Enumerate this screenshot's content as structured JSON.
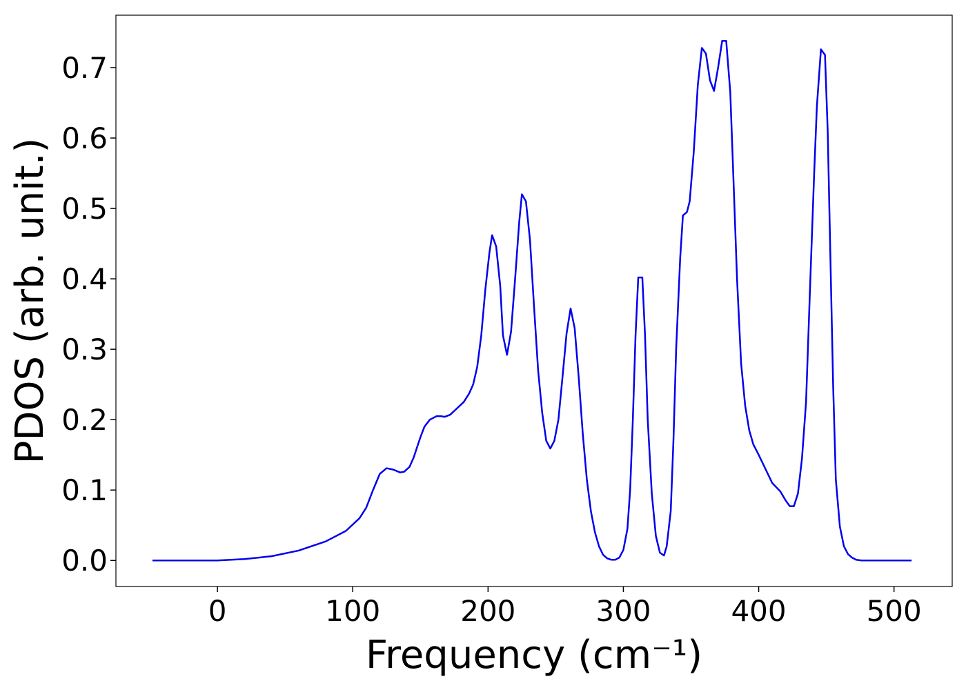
{
  "chart_data": {
    "type": "line",
    "xlabel": "Frequency (cm⁻¹)",
    "ylabel": "PDOS (arb. unit.)",
    "xlim": [
      -75,
      543
    ],
    "ylim": [
      -0.037,
      0.7745
    ],
    "xticks": [
      0,
      100,
      200,
      300,
      400,
      500
    ],
    "yticks": [
      {
        "value": 0,
        "label": "0.0"
      },
      0.1,
      0.2,
      0.3,
      0.4,
      0.5,
      0.6,
      0.7
    ],
    "series": [
      {
        "color": "#0000ee",
        "x": [
          -48,
          0,
          20,
          40,
          60,
          80,
          95,
          105,
          110,
          115,
          120,
          125,
          130,
          135,
          138,
          142,
          145,
          150,
          153,
          157,
          162,
          165,
          168,
          172,
          177,
          182,
          186,
          189,
          192,
          195,
          198,
          201,
          203,
          206,
          209,
          211,
          214,
          217,
          220,
          223,
          225,
          228,
          231,
          234,
          237,
          240,
          243,
          246,
          249,
          252,
          255,
          258,
          261,
          264,
          267,
          270,
          273,
          276,
          279,
          282,
          285,
          288,
          291,
          294,
          297,
          300,
          303,
          305,
          307,
          309,
          311,
          314,
          316,
          318,
          321,
          324,
          327,
          330,
          332,
          335,
          337,
          339,
          342,
          344,
          347,
          349,
          352,
          355,
          358,
          361,
          364,
          367,
          370,
          373,
          376,
          379,
          381,
          384,
          387,
          390,
          393,
          396,
          400,
          405,
          410,
          416,
          420,
          423,
          426,
          429,
          432,
          435,
          438,
          441,
          443,
          446,
          449,
          451,
          453,
          455,
          457,
          460,
          463,
          466,
          469,
          472,
          476,
          513
        ],
        "values": [
          0,
          0,
          0.002,
          0.006,
          0.014,
          0.027,
          0.042,
          0.06,
          0.075,
          0.1,
          0.123,
          0.131,
          0.129,
          0.125,
          0.126,
          0.133,
          0.146,
          0.175,
          0.19,
          0.2,
          0.205,
          0.205,
          0.204,
          0.207,
          0.216,
          0.225,
          0.237,
          0.25,
          0.275,
          0.32,
          0.385,
          0.437,
          0.462,
          0.446,
          0.39,
          0.32,
          0.292,
          0.325,
          0.4,
          0.48,
          0.52,
          0.51,
          0.455,
          0.36,
          0.27,
          0.21,
          0.17,
          0.159,
          0.17,
          0.2,
          0.26,
          0.322,
          0.358,
          0.33,
          0.26,
          0.18,
          0.115,
          0.07,
          0.04,
          0.02,
          0.008,
          0.003,
          0.001,
          0.001,
          0.004,
          0.015,
          0.045,
          0.1,
          0.2,
          0.32,
          0.402,
          0.402,
          0.32,
          0.2,
          0.095,
          0.035,
          0.011,
          0.007,
          0.02,
          0.07,
          0.17,
          0.3,
          0.43,
          0.49,
          0.495,
          0.51,
          0.58,
          0.675,
          0.728,
          0.72,
          0.682,
          0.667,
          0.7,
          0.738,
          0.738,
          0.665,
          0.56,
          0.4,
          0.28,
          0.22,
          0.185,
          0.165,
          0.15,
          0.13,
          0.11,
          0.098,
          0.085,
          0.077,
          0.077,
          0.095,
          0.145,
          0.225,
          0.39,
          0.55,
          0.645,
          0.726,
          0.718,
          0.61,
          0.43,
          0.25,
          0.115,
          0.048,
          0.02,
          0.009,
          0.004,
          0.001,
          0,
          0
        ]
      }
    ]
  }
}
